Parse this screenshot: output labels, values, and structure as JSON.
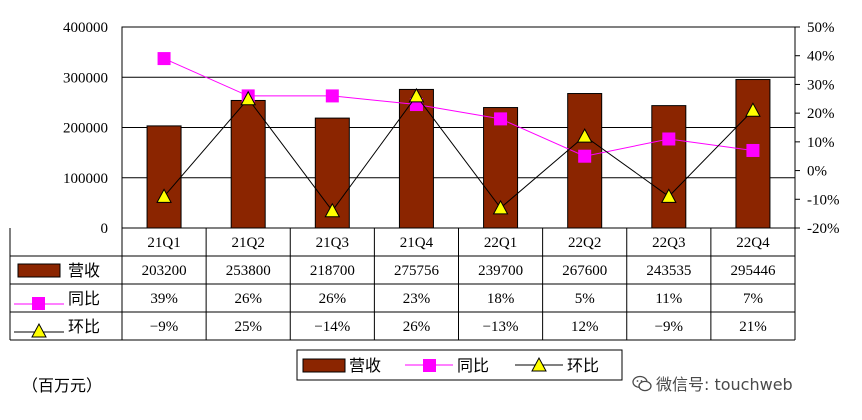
{
  "chart_data": {
    "type": "bar",
    "categories": [
      "21Q1",
      "21Q2",
      "21Q3",
      "21Q4",
      "22Q1",
      "22Q2",
      "22Q3",
      "22Q4"
    ],
    "series": [
      {
        "name": "营收",
        "type": "bar",
        "axis": "left",
        "color": "#8B2500",
        "values": [
          203200,
          253800,
          218700,
          275756,
          239700,
          267600,
          243535,
          295446
        ],
        "labels": [
          "203200",
          "253800",
          "218700",
          "275756",
          "239700",
          "267600",
          "243535",
          "295446"
        ]
      },
      {
        "name": "同比",
        "type": "line",
        "axis": "right",
        "color": "#FF00FF",
        "marker": "square",
        "values": [
          39,
          26,
          26,
          23,
          18,
          5,
          11,
          7
        ],
        "labels": [
          "39%",
          "26%",
          "26%",
          "23%",
          "18%",
          "5%",
          "11%",
          "7%"
        ]
      },
      {
        "name": "环比",
        "type": "line",
        "axis": "right",
        "color": "#000000",
        "marker": "triangle",
        "marker_fill": "#FFFF00",
        "values": [
          -9,
          25,
          -14,
          26,
          -13,
          12,
          -9,
          21
        ],
        "labels": [
          "-9%",
          "25%",
          "-14%",
          "26%",
          "-13%",
          "12%",
          "-9%",
          "21%"
        ]
      }
    ],
    "left_axis": {
      "ylim": [
        0,
        400000
      ],
      "ticks": [
        {
          "v": 0,
          "label": "0"
        },
        {
          "v": 100000,
          "label": "100000"
        },
        {
          "v": 200000,
          "label": "200000"
        },
        {
          "v": 300000,
          "label": "300000"
        },
        {
          "v": 400000,
          "label": "400000"
        }
      ]
    },
    "right_axis": {
      "ylim": [
        -20,
        50
      ],
      "ticks": [
        {
          "v": -20,
          "label": "-20%"
        },
        {
          "v": -10,
          "label": "-10%"
        },
        {
          "v": 0,
          "label": "0%"
        },
        {
          "v": 10,
          "label": "10%"
        },
        {
          "v": 20,
          "label": "20%"
        },
        {
          "v": 30,
          "label": "30%"
        },
        {
          "v": 40,
          "label": "40%"
        },
        {
          "v": 50,
          "label": "50%"
        }
      ]
    },
    "grid": true,
    "data_table": true,
    "legend_position": "bottom"
  },
  "unit_label": "（百万元）",
  "watermark": {
    "text": "微信号: touchweb",
    "icon": "wechat-icon"
  }
}
